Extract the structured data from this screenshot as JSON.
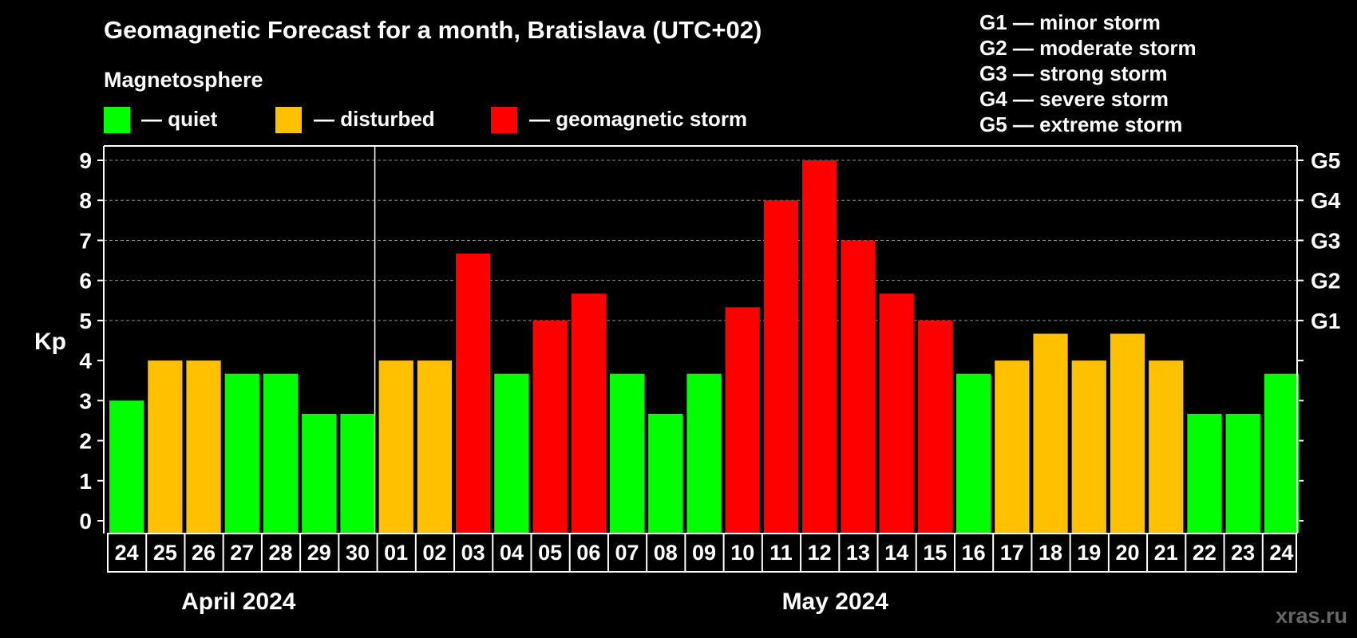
{
  "chart_data": {
    "type": "bar",
    "title": "Geomagnetic Forecast for a month, Bratislava (UTC+02)",
    "legend_title": "Magnetosphere",
    "legend": [
      {
        "key": "quiet",
        "label": "— quiet",
        "color": "#00ff00"
      },
      {
        "key": "disturbed",
        "label": "— disturbed",
        "color": "#ffc000"
      },
      {
        "key": "storm",
        "label": "— geomagnetic storm",
        "color": "#ff0000"
      }
    ],
    "storm_scale": [
      "G1 — minor storm",
      "G2 — moderate storm",
      "G3 — strong storm",
      "G4 — severe storm",
      "G5 — extreme storm"
    ],
    "ylabel": "Kp",
    "ylim": [
      0,
      9
    ],
    "yticks": [
      0,
      1,
      2,
      3,
      4,
      5,
      6,
      7,
      8,
      9
    ],
    "g_ticks": [
      {
        "value": 5,
        "label": "G1"
      },
      {
        "value": 6,
        "label": "G2"
      },
      {
        "value": 7,
        "label": "G3"
      },
      {
        "value": 8,
        "label": "G4"
      },
      {
        "value": 9,
        "label": "G5"
      }
    ],
    "months": [
      {
        "label": "April 2024",
        "days": 7
      },
      {
        "label": "May 2024",
        "days": 24
      }
    ],
    "categories": [
      "24",
      "25",
      "26",
      "27",
      "28",
      "29",
      "30",
      "01",
      "02",
      "03",
      "04",
      "05",
      "06",
      "07",
      "08",
      "09",
      "10",
      "11",
      "12",
      "13",
      "14",
      "15",
      "16",
      "17",
      "18",
      "19",
      "20",
      "21",
      "22",
      "23",
      "24"
    ],
    "values": [
      3,
      4,
      4,
      3.67,
      3.67,
      2.67,
      2.67,
      4,
      4,
      6.67,
      3.67,
      5,
      5.67,
      3.67,
      2.67,
      3.67,
      5.33,
      8,
      9,
      7,
      5.67,
      5,
      3.67,
      4,
      4.67,
      4,
      4.67,
      4,
      2.67,
      2.67,
      3.67
    ],
    "levels": [
      "quiet",
      "disturbed",
      "disturbed",
      "quiet",
      "quiet",
      "quiet",
      "quiet",
      "disturbed",
      "disturbed",
      "storm",
      "quiet",
      "storm",
      "storm",
      "quiet",
      "quiet",
      "quiet",
      "storm",
      "storm",
      "storm",
      "storm",
      "storm",
      "storm",
      "quiet",
      "disturbed",
      "disturbed",
      "disturbed",
      "disturbed",
      "disturbed",
      "quiet",
      "quiet",
      "quiet"
    ]
  },
  "watermark": "xras.ru"
}
